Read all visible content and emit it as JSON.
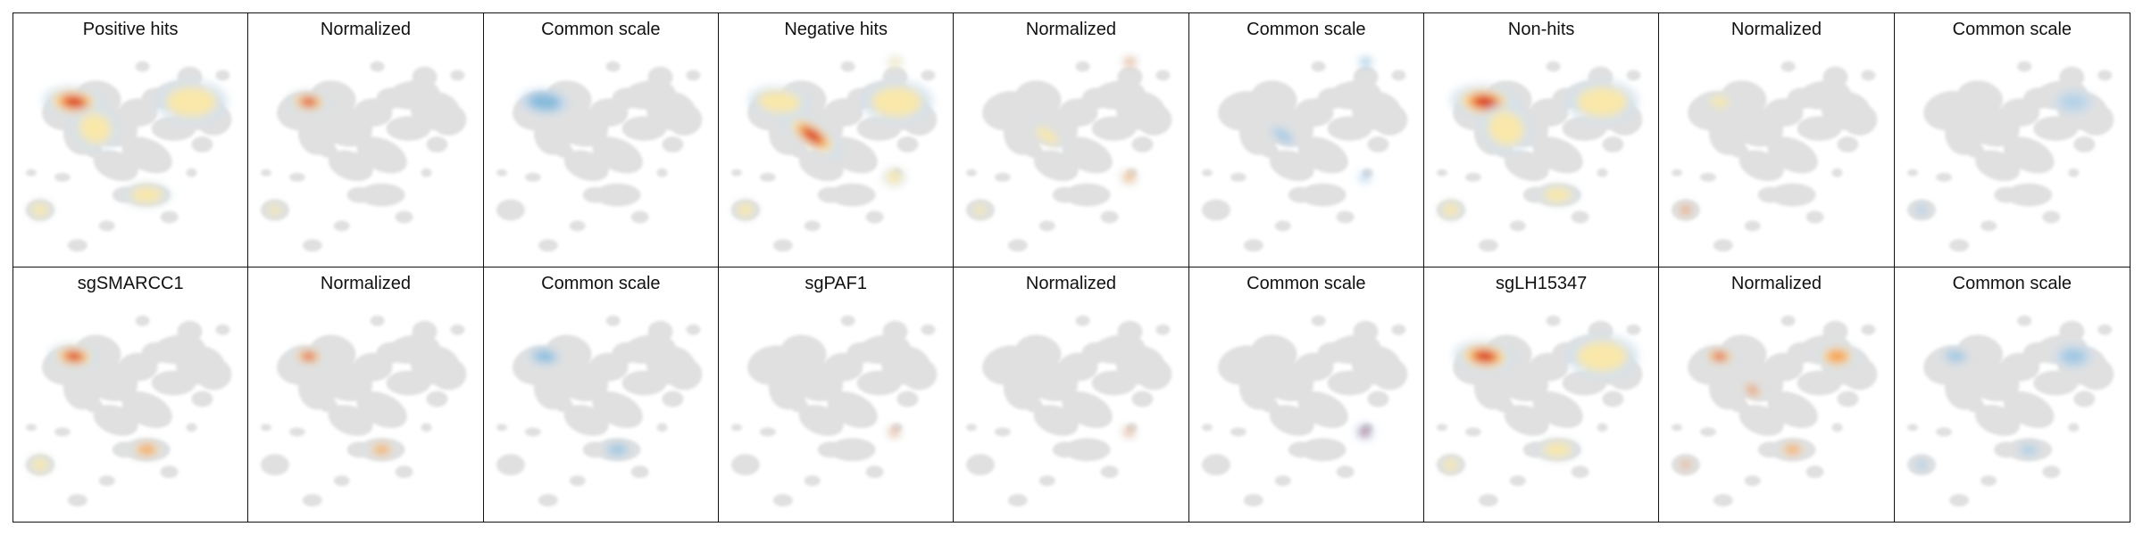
{
  "figure": {
    "rows": [
      {
        "panels": [
          {
            "title": "Positive hits",
            "mode": "raw",
            "hotspots": [
              {
                "region": "top-left-lobe",
                "intensity": 1.0,
                "spread": 1.0
              },
              {
                "region": "left-mid-arm",
                "intensity": 0.45,
                "spread": 0.9
              },
              {
                "region": "upper-right-ring",
                "intensity": 0.35,
                "spread": 1.0
              },
              {
                "region": "lower-left-blob",
                "intensity": 0.35,
                "spread": 0.8
              },
              {
                "region": "lower-center-ring",
                "intensity": 0.3,
                "spread": 0.9
              }
            ]
          },
          {
            "title": "Normalized",
            "mode": "normalized",
            "hotspots": [
              {
                "region": "top-left-lobe",
                "intensity": 1.0,
                "spread": 0.7
              },
              {
                "region": "lower-left-blob",
                "intensity": 0.35,
                "spread": 0.6
              }
            ]
          },
          {
            "title": "Common scale",
            "mode": "common",
            "hotspots": [
              {
                "region": "top-left-lobe",
                "intensity": 0.75,
                "spread": 0.9
              }
            ]
          },
          {
            "title": "Negative hits",
            "mode": "raw",
            "hotspots": [
              {
                "region": "center-band",
                "intensity": 1.0,
                "spread": 1.2
              },
              {
                "region": "top-left-lobe",
                "intensity": 0.55,
                "spread": 1.0
              },
              {
                "region": "upper-right-ring",
                "intensity": 0.5,
                "spread": 1.0
              },
              {
                "region": "lower-left-blob",
                "intensity": 0.45,
                "spread": 0.8
              },
              {
                "region": "lower-right-blob",
                "intensity": 0.35,
                "spread": 0.8
              },
              {
                "region": "top-right-dot",
                "intensity": 0.3,
                "spread": 0.6
              }
            ]
          },
          {
            "title": "Normalized",
            "mode": "normalized",
            "hotspots": [
              {
                "region": "top-right-dot",
                "intensity": 1.0,
                "spread": 0.6
              },
              {
                "region": "lower-right-blob",
                "intensity": 0.6,
                "spread": 0.6
              },
              {
                "region": "center-band",
                "intensity": 0.4,
                "spread": 0.7
              },
              {
                "region": "lower-left-blob",
                "intensity": 0.4,
                "spread": 0.6
              }
            ]
          },
          {
            "title": "Common scale",
            "mode": "common",
            "hotspots": [
              {
                "region": "top-right-dot",
                "intensity": 0.75,
                "spread": 0.6
              },
              {
                "region": "center-band",
                "intensity": 0.45,
                "spread": 0.6
              },
              {
                "region": "lower-right-blob",
                "intensity": 0.45,
                "spread": 0.5
              }
            ]
          },
          {
            "title": "Non-hits",
            "mode": "raw",
            "hotspots": [
              {
                "region": "top-left-lobe",
                "intensity": 1.0,
                "spread": 1.1
              },
              {
                "region": "left-mid-arm",
                "intensity": 0.55,
                "spread": 1.0
              },
              {
                "region": "upper-right-ring",
                "intensity": 0.35,
                "spread": 1.0
              },
              {
                "region": "lower-left-blob",
                "intensity": 0.45,
                "spread": 0.8
              },
              {
                "region": "lower-center-ring",
                "intensity": 0.35,
                "spread": 0.8
              }
            ]
          },
          {
            "title": "Normalized",
            "mode": "normalized",
            "hotspots": [
              {
                "region": "lower-left-blob",
                "intensity": 1.0,
                "spread": 0.6
              },
              {
                "region": "top-left-lobe",
                "intensity": 0.35,
                "spread": 0.5
              }
            ]
          },
          {
            "title": "Common scale",
            "mode": "common",
            "hotspots": [
              {
                "region": "lower-left-blob",
                "intensity": 0.45,
                "spread": 0.5
              },
              {
                "region": "upper-right-ring",
                "intensity": 0.25,
                "spread": 0.6
              }
            ]
          }
        ]
      },
      {
        "panels": [
          {
            "title": "sgSMARCC1",
            "mode": "raw",
            "hotspots": [
              {
                "region": "top-left-lobe",
                "intensity": 1.0,
                "spread": 0.8
              },
              {
                "region": "lower-center-ring",
                "intensity": 0.6,
                "spread": 0.7
              },
              {
                "region": "lower-left-blob",
                "intensity": 0.35,
                "spread": 0.8
              }
            ]
          },
          {
            "title": "Normalized",
            "mode": "normalized",
            "hotspots": [
              {
                "region": "top-left-lobe",
                "intensity": 1.0,
                "spread": 0.6
              },
              {
                "region": "lower-center-ring",
                "intensity": 0.65,
                "spread": 0.6
              }
            ]
          },
          {
            "title": "Common scale",
            "mode": "common",
            "hotspots": [
              {
                "region": "top-left-lobe",
                "intensity": 0.7,
                "spread": 0.6
              },
              {
                "region": "lower-center-ring",
                "intensity": 0.55,
                "spread": 0.6
              }
            ]
          },
          {
            "title": "sgPAF1",
            "mode": "raw",
            "hotspots": [
              {
                "region": "lower-right-blob",
                "intensity": 1.0,
                "spread": 0.5
              }
            ]
          },
          {
            "title": "Normalized",
            "mode": "normalized",
            "hotspots": [
              {
                "region": "lower-right-blob",
                "intensity": 1.0,
                "spread": 0.5
              }
            ]
          },
          {
            "title": "Common scale",
            "mode": "common",
            "hotspots": [
              {
                "region": "lower-right-blob",
                "intensity": 1.0,
                "spread": 0.7
              }
            ]
          },
          {
            "title": "sgLH15347",
            "mode": "raw",
            "hotspots": [
              {
                "region": "top-left-lobe",
                "intensity": 1.0,
                "spread": 1.0
              },
              {
                "region": "upper-right-ring",
                "intensity": 0.5,
                "spread": 1.0
              },
              {
                "region": "lower-left-blob",
                "intensity": 0.55,
                "spread": 0.7
              },
              {
                "region": "lower-center-ring",
                "intensity": 0.5,
                "spread": 0.8
              }
            ]
          },
          {
            "title": "Normalized",
            "mode": "normalized",
            "hotspots": [
              {
                "region": "top-left-lobe",
                "intensity": 1.0,
                "spread": 0.6
              },
              {
                "region": "center-band",
                "intensity": 0.9,
                "spread": 0.5
              },
              {
                "region": "upper-right-ring",
                "intensity": 0.6,
                "spread": 0.6
              },
              {
                "region": "lower-left-blob",
                "intensity": 0.85,
                "spread": 0.5
              },
              {
                "region": "lower-center-ring",
                "intensity": 0.6,
                "spread": 0.6
              }
            ]
          },
          {
            "title": "Common scale",
            "mode": "common",
            "hotspots": [
              {
                "region": "top-left-lobe",
                "intensity": 0.55,
                "spread": 0.5
              },
              {
                "region": "upper-right-ring",
                "intensity": 0.45,
                "spread": 0.6
              },
              {
                "region": "lower-left-blob",
                "intensity": 0.45,
                "spread": 0.5
              },
              {
                "region": "lower-center-ring",
                "intensity": 0.4,
                "spread": 0.5
              }
            ]
          }
        ]
      }
    ]
  },
  "colors": {
    "background_cells": "#e0e0e0",
    "raw_scale": [
      "#d1e2ee",
      "#fbe8a5",
      "#f6a04a",
      "#d7191c"
    ],
    "common_scale": [
      "#c6dbef",
      "#6baed6"
    ],
    "border": "#111111"
  }
}
